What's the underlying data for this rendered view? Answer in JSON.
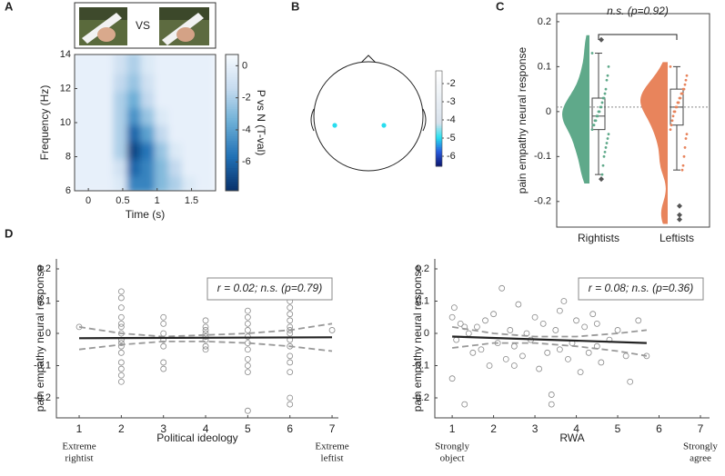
{
  "chart_data": [
    {
      "type": "heatmap",
      "panel": "A",
      "stimulus_label": "VS",
      "x_label": "Time (s)",
      "y_label": "Frequency (Hz)",
      "colorbar_label": "P vs N (T-val)",
      "x": [
        -0.1,
        0.1,
        0.3,
        0.5,
        0.7,
        0.9,
        1.1,
        1.3,
        1.5,
        1.7
      ],
      "y": [
        6.5,
        7.5,
        8.5,
        9.5,
        10.5,
        11.5,
        12.5,
        13.5
      ],
      "z": [
        [
          0,
          0,
          0,
          -0.5,
          -5,
          -5,
          -3,
          -2,
          -0.5,
          0
        ],
        [
          0,
          0,
          0,
          -1,
          -6,
          -5,
          -3,
          -1.5,
          0,
          0
        ],
        [
          0,
          0,
          0,
          -2,
          -7,
          -5.5,
          -2.5,
          -0.5,
          0,
          0
        ],
        [
          0,
          0,
          0,
          -2,
          -6,
          -4,
          -1.5,
          0,
          0,
          0
        ],
        [
          0,
          0,
          0,
          -2,
          -4.5,
          -2.5,
          -0.5,
          0,
          0,
          0
        ],
        [
          0,
          0,
          0,
          -2,
          -3.5,
          -1.5,
          0,
          0,
          0,
          0
        ],
        [
          0,
          0,
          0,
          -1.5,
          -2.5,
          -1,
          0,
          0,
          0,
          0
        ],
        [
          0,
          0,
          0,
          -1,
          -2,
          -0.5,
          0,
          0,
          0,
          0
        ]
      ],
      "xlim": [
        -0.2,
        1.85
      ],
      "ylim": [
        6,
        14
      ],
      "xticks": [
        0,
        0.5,
        1,
        1.5
      ],
      "yticks": [
        6,
        8,
        10,
        12,
        14
      ],
      "clim": [
        -7.8,
        0.7
      ],
      "cticks": [
        0,
        -2,
        -4,
        -6
      ]
    },
    {
      "type": "topomap",
      "panel": "B",
      "electrode_values": [
        -5,
        -5
      ],
      "clim": [
        -6.55,
        -1.3
      ],
      "cticks": [
        -2,
        -3,
        -4,
        -5,
        -6
      ]
    },
    {
      "type": "violin",
      "panel": "C",
      "y_label": "pain empathy neural response",
      "annotation": "n.s. (p=0.92)",
      "categories": [
        "Rightists",
        "Leftists"
      ],
      "series": [
        {
          "color": "#5fa98a",
          "values": [
            0.13,
            0.1,
            0.08,
            0.07,
            0.05,
            0.04,
            0.03,
            0.03,
            0.02,
            0.01,
            0.01,
            0.0,
            0.0,
            -0.01,
            -0.01,
            -0.02,
            -0.02,
            -0.03,
            -0.03,
            -0.04,
            -0.05,
            -0.06,
            -0.07,
            -0.08,
            -0.09,
            -0.1,
            -0.12,
            -0.14
          ],
          "box": {
            "min": -0.14,
            "q1": -0.04,
            "median": -0.01,
            "q3": 0.03,
            "max": 0.13
          },
          "outliers": [
            0.16,
            -0.15
          ]
        },
        {
          "color": "#e8845c",
          "values": [
            0.1,
            0.08,
            0.07,
            0.06,
            0.05,
            0.05,
            0.04,
            0.04,
            0.03,
            0.03,
            0.02,
            0.02,
            0.01,
            0.01,
            0.0,
            0.0,
            -0.01,
            -0.02,
            -0.03,
            -0.04,
            -0.05,
            -0.06,
            -0.08,
            -0.1,
            -0.12,
            -0.13
          ],
          "box": {
            "min": -0.13,
            "q1": -0.03,
            "median": 0.01,
            "q3": 0.05,
            "max": 0.1
          },
          "outliers": [
            -0.21,
            -0.23,
            -0.24
          ]
        }
      ],
      "reference_line": 0.01,
      "ylim": [
        -0.257,
        0.218
      ],
      "yticks": [
        -0.2,
        -0.1,
        0,
        0.1,
        0.2
      ]
    },
    {
      "type": "scatter",
      "panel": "D",
      "x_label": "Political ideology",
      "y_label": "pain empathy neural response",
      "x_end_labels": [
        [
          "Extreme",
          "rightist"
        ],
        [
          "Extreme",
          "leftist"
        ]
      ],
      "annotation": "r = 0.02; n.s. (p=0.79)",
      "x": [
        1,
        2,
        2,
        2,
        2,
        2,
        2,
        2,
        2,
        2,
        2,
        2,
        2,
        2,
        2,
        2,
        3,
        3,
        3,
        3,
        3,
        3,
        3,
        4,
        4,
        4,
        4,
        4,
        4,
        4,
        4,
        5,
        5,
        5,
        5,
        5,
        5,
        5,
        5,
        5,
        5,
        5,
        6,
        6,
        6,
        6,
        6,
        6,
        6,
        6,
        6,
        6,
        6,
        6,
        6,
        6,
        7
      ],
      "values": [
        0.02,
        0.13,
        0.11,
        0.08,
        0.05,
        0.03,
        0.02,
        0.0,
        -0.02,
        -0.04,
        -0.06,
        -0.09,
        -0.13,
        -0.15,
        -0.11,
        -0.03,
        0.05,
        0.03,
        0.0,
        -0.02,
        -0.04,
        -0.09,
        -0.11,
        0.04,
        0.02,
        0.01,
        0.0,
        -0.01,
        -0.02,
        -0.04,
        -0.05,
        0.07,
        0.05,
        0.03,
        0.01,
        -0.01,
        -0.03,
        -0.05,
        -0.08,
        -0.1,
        -0.12,
        -0.24,
        0.1,
        0.08,
        0.06,
        0.04,
        0.02,
        0.01,
        0.0,
        -0.02,
        -0.04,
        -0.07,
        -0.09,
        -0.12,
        -0.2,
        -0.22,
        0.01
      ],
      "fit": {
        "x": [
          1,
          7
        ],
        "values": [
          -0.015,
          -0.012
        ]
      },
      "ci_upper": {
        "x": [
          1,
          2,
          3,
          4,
          5,
          6,
          7
        ],
        "values": [
          0.02,
          0.0,
          -0.01,
          -0.005,
          0.0,
          0.01,
          0.03
        ]
      },
      "ci_lower": {
        "x": [
          1,
          2,
          3,
          4,
          5,
          6,
          7
        ],
        "values": [
          -0.05,
          -0.035,
          -0.025,
          -0.025,
          -0.03,
          -0.04,
          -0.055
        ]
      },
      "xlim": [
        0.46,
        7.15
      ],
      "ylim": [
        -0.262,
        0.231
      ],
      "xticks": [
        1,
        2,
        3,
        4,
        5,
        6,
        7
      ],
      "yticks": [
        -0.2,
        -0.1,
        0,
        0.1,
        0.2
      ]
    },
    {
      "type": "scatter",
      "x_label": "RWA",
      "y_label": "pain empathy neural response",
      "x_end_labels": [
        [
          "Strongly",
          "object"
        ],
        [
          "Strongly",
          "agree"
        ]
      ],
      "annotation": "r = 0.08; n.s. (p=0.36)",
      "x": [
        1.0,
        1.0,
        1.05,
        1.1,
        1.2,
        1.3,
        1.4,
        1.5,
        1.6,
        1.7,
        1.8,
        1.9,
        2.0,
        2.1,
        2.2,
        2.3,
        2.4,
        2.5,
        2.6,
        2.7,
        2.8,
        2.9,
        3.0,
        3.1,
        3.2,
        3.3,
        3.4,
        3.4,
        3.5,
        3.6,
        3.7,
        3.8,
        3.9,
        4.0,
        4.1,
        4.2,
        4.3,
        4.4,
        4.5,
        4.6,
        4.8,
        5.0,
        5.2,
        5.3,
        5.5,
        5.7,
        1.3,
        2.5,
        3.6,
        4.5
      ],
      "values": [
        0.05,
        -0.14,
        0.08,
        -0.02,
        0.03,
        -0.22,
        0.0,
        -0.06,
        0.02,
        -0.05,
        0.04,
        -0.1,
        0.06,
        -0.03,
        0.14,
        -0.08,
        0.01,
        -0.04,
        0.09,
        -0.07,
        0.0,
        -0.02,
        0.05,
        -0.11,
        0.03,
        -0.06,
        -0.19,
        -0.22,
        0.01,
        -0.05,
        0.1,
        -0.08,
        -0.03,
        0.04,
        -0.12,
        0.02,
        -0.06,
        0.06,
        -0.04,
        -0.09,
        -0.02,
        0.01,
        -0.07,
        -0.15,
        0.04,
        -0.07,
        0.02,
        -0.1,
        0.07,
        0.03
      ],
      "fit": {
        "x": [
          1,
          5.7
        ],
        "values": [
          -0.01,
          -0.03
        ]
      },
      "ci_upper": {
        "x": [
          1,
          2,
          3,
          4,
          5,
          5.7
        ],
        "values": [
          0.02,
          0.0,
          -0.01,
          -0.01,
          0.0,
          0.01
        ]
      },
      "ci_lower": {
        "x": [
          1,
          2,
          3,
          4,
          5,
          5.7
        ],
        "values": [
          -0.045,
          -0.03,
          -0.03,
          -0.04,
          -0.055,
          -0.07
        ]
      },
      "xlim": [
        0.58,
        7.22
      ],
      "ylim": [
        -0.262,
        0.231
      ],
      "xticks": [
        1,
        2,
        3,
        4,
        5,
        6,
        7
      ],
      "yticks": [
        -0.2,
        -0.1,
        0,
        0.1,
        0.2
      ]
    }
  ]
}
